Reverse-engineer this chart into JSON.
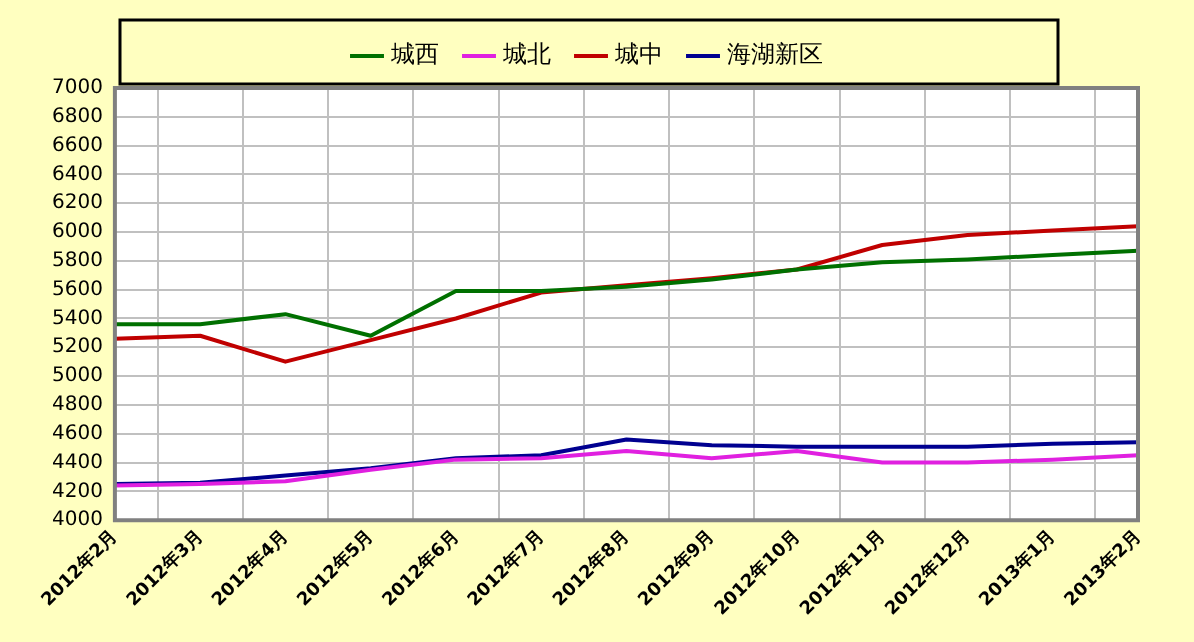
{
  "chart_data": {
    "type": "line",
    "categories": [
      "2012年2月",
      "2012年3月",
      "2012年4月",
      "2012年5月",
      "2012年6月",
      "2012年7月",
      "2012年8月",
      "2012年9月",
      "2012年10月",
      "2012年11月",
      "2012年12月",
      "2013年1月",
      "2013年2月"
    ],
    "series": [
      {
        "name": "城西",
        "color": "#007000",
        "values": [
          5360,
          5360,
          5430,
          5280,
          5590,
          5590,
          5620,
          5670,
          5740,
          5790,
          5810,
          5840,
          5870
        ]
      },
      {
        "name": "城北",
        "color": "#e020e0",
        "values": [
          4240,
          4250,
          4270,
          4350,
          4420,
          4430,
          4480,
          4430,
          4480,
          4400,
          4400,
          4420,
          4450
        ]
      },
      {
        "name": "城中",
        "color": "#c00000",
        "values": [
          5260,
          5280,
          5100,
          5250,
          5400,
          5580,
          5630,
          5680,
          5740,
          5910,
          5980,
          6010,
          6040
        ]
      },
      {
        "name": "海湖新区",
        "color": "#000090",
        "values": [
          4250,
          4260,
          4310,
          4360,
          4430,
          4450,
          4560,
          4520,
          4510,
          4510,
          4510,
          4530,
          4540
        ]
      }
    ],
    "ylim": [
      4000,
      7000
    ],
    "yticks": [
      4000,
      4200,
      4400,
      4600,
      4800,
      5000,
      5200,
      5400,
      5600,
      5800,
      6000,
      6200,
      6400,
      6600,
      6800,
      7000
    ],
    "grid": true,
    "legend": "top",
    "marker": "none",
    "line_style": "solid"
  }
}
